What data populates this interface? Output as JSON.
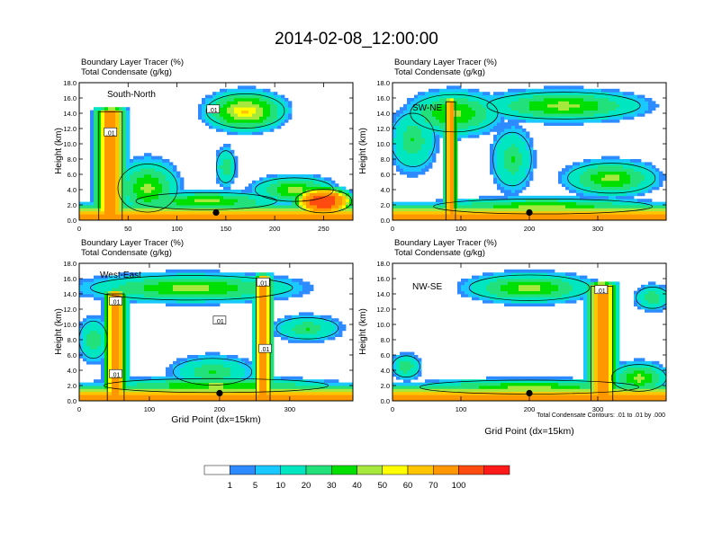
{
  "figure_title": "2014-02-08_12:00:00",
  "footnote": "Total Condensate Contours: .01 to .01 by .000",
  "colors": {
    "levels": [
      "#ffffff",
      "#2e8bff",
      "#18c8ff",
      "#00e6c0",
      "#22e07a",
      "#00e000",
      "#a6e83c",
      "#ffff00",
      "#ffc600",
      "#ff9800",
      "#ff4a10",
      "#ff1a1a"
    ],
    "contour": "#000000",
    "marker": "#000000"
  },
  "colorbar": {
    "labels": [
      "1",
      "5",
      "10",
      "20",
      "30",
      "40",
      "50",
      "60",
      "70",
      "100"
    ]
  },
  "chart_data": [
    {
      "type": "heatmap",
      "title": "Boundary Layer Tracer   (%)",
      "subtitle": "Total Condensate   (g/kg)",
      "panel_label": "South-North",
      "ylabel": "Height (km)",
      "xlabel": "",
      "xlim": [
        0,
        280
      ],
      "ylim": [
        0,
        18
      ],
      "xticks": [
        "0",
        "50",
        "100",
        "150",
        "200",
        "250"
      ],
      "xtick_values": [
        0,
        50,
        100,
        150,
        200,
        250
      ],
      "yticks": [
        "0.0",
        "2.0",
        "4.0",
        "6.0",
        "8.0",
        "10.0",
        "12.0",
        "14.0",
        "16.0",
        "18.0"
      ],
      "surface_band_top_km": 1.0,
      "marker": {
        "x": 140,
        "y": 1.0
      },
      "contour_labels": [
        {
          "x": 32,
          "y": 11.5,
          "text": ".01"
        },
        {
          "x": 137,
          "y": 14.5,
          "text": ".01"
        }
      ],
      "features": [
        {
          "kind": "column",
          "x0": 20,
          "x1": 44,
          "top": 14.2,
          "peak": 100
        },
        {
          "kind": "blob",
          "cx": 70,
          "cy": 4.2,
          "rx": 38,
          "ry": 4.5,
          "peak": 30
        },
        {
          "kind": "blob",
          "cx": 170,
          "cy": 14.3,
          "rx": 50,
          "ry": 3.2,
          "peak": 40
        },
        {
          "kind": "blob",
          "cx": 150,
          "cy": 7.0,
          "rx": 12,
          "ry": 3.0,
          "peak": 20
        },
        {
          "kind": "blob",
          "cx": 250,
          "cy": 2.5,
          "rx": 36,
          "ry": 2.2,
          "peak": 100
        },
        {
          "kind": "blob",
          "cx": 130,
          "cy": 2.5,
          "rx": 90,
          "ry": 1.6,
          "peak": 30
        },
        {
          "kind": "blob",
          "cx": 220,
          "cy": 4.0,
          "rx": 50,
          "ry": 2.2,
          "peak": 30
        }
      ]
    },
    {
      "type": "heatmap",
      "title": "Boundary Layer Tracer   (%)",
      "subtitle": "Total Condensate   (g/kg)",
      "panel_label": "SW-NE",
      "ylabel": "Height (km)",
      "xlabel": "",
      "xlim": [
        0,
        400
      ],
      "ylim": [
        0,
        18
      ],
      "xticks": [
        "0",
        "100",
        "200",
        "300"
      ],
      "xtick_values": [
        0,
        100,
        200,
        300
      ],
      "yticks": [
        "0.0",
        "2.0",
        "4.0",
        "6.0",
        "8.0",
        "10.0",
        "12.0",
        "14.0",
        "16.0",
        "18.0"
      ],
      "surface_band_top_km": 1.0,
      "marker": {
        "x": 200,
        "y": 1.0
      },
      "contour_labels": [],
      "features": [
        {
          "kind": "column",
          "x0": 78,
          "x1": 92,
          "top": 15.5,
          "peak": 100
        },
        {
          "kind": "blob",
          "cx": 90,
          "cy": 14.0,
          "rx": 80,
          "ry": 3.5,
          "peak": 30
        },
        {
          "kind": "blob",
          "cx": 30,
          "cy": 10.5,
          "rx": 40,
          "ry": 5.0,
          "peak": 20
        },
        {
          "kind": "blob",
          "cx": 250,
          "cy": 15.0,
          "rx": 140,
          "ry": 2.5,
          "peak": 30
        },
        {
          "kind": "blob",
          "cx": 175,
          "cy": 8.0,
          "rx": 35,
          "ry": 5.0,
          "peak": 20
        },
        {
          "kind": "blob",
          "cx": 320,
          "cy": 5.5,
          "rx": 80,
          "ry": 2.8,
          "peak": 30
        },
        {
          "kind": "blob",
          "cx": 220,
          "cy": 1.8,
          "rx": 200,
          "ry": 1.4,
          "peak": 30
        }
      ]
    },
    {
      "type": "heatmap",
      "title": "Boundary Layer Tracer   (%)",
      "subtitle": "Total Condensate   (g/kg)",
      "panel_label": "West-East",
      "ylabel": "Height (km)",
      "xlabel": "Grid Point (dx=15km)",
      "xlim": [
        0,
        390
      ],
      "ylim": [
        0,
        18
      ],
      "xticks": [
        "0",
        "100",
        "200",
        "300"
      ],
      "xtick_values": [
        0,
        100,
        200,
        300
      ],
      "yticks": [
        "0.0",
        "2.0",
        "4.0",
        "6.0",
        "8.0",
        "10.0",
        "12.0",
        "14.0",
        "16.0",
        "18.0"
      ],
      "surface_band_top_km": 1.0,
      "marker": {
        "x": 200,
        "y": 1.0
      },
      "contour_labels": [
        {
          "x": 52,
          "y": 13.0,
          "text": ".01"
        },
        {
          "x": 52,
          "y": 3.5,
          "text": ".01"
        },
        {
          "x": 200,
          "y": 10.5,
          "text": ".01"
        },
        {
          "x": 262,
          "y": 15.5,
          "text": ".01"
        },
        {
          "x": 265,
          "y": 6.8,
          "text": ".01"
        }
      ],
      "features": [
        {
          "kind": "column",
          "x0": 40,
          "x1": 64,
          "top": 14.0,
          "peak": 100
        },
        {
          "kind": "column",
          "x0": 252,
          "x1": 272,
          "top": 16.0,
          "peak": 100
        },
        {
          "kind": "blob",
          "cx": 160,
          "cy": 14.8,
          "rx": 180,
          "ry": 2.3,
          "peak": 30
        },
        {
          "kind": "blob",
          "cx": 20,
          "cy": 8.0,
          "rx": 25,
          "ry": 3.5,
          "peak": 20
        },
        {
          "kind": "blob",
          "cx": 190,
          "cy": 3.8,
          "rx": 70,
          "ry": 2.5,
          "peak": 20
        },
        {
          "kind": "blob",
          "cx": 325,
          "cy": 9.5,
          "rx": 55,
          "ry": 2.0,
          "peak": 20
        },
        {
          "kind": "blob",
          "cx": 195,
          "cy": 2.0,
          "rx": 200,
          "ry": 1.3,
          "peak": 30
        }
      ]
    },
    {
      "type": "heatmap",
      "title": "Boundary Layer Tracer   (%)",
      "subtitle": "Total Condensate   (g/kg)",
      "panel_label": "NW-SE",
      "ylabel": "Height (km)",
      "xlabel": "Grid Point (dx=15km)",
      "xlim": [
        0,
        400
      ],
      "ylim": [
        0,
        18
      ],
      "xticks": [
        "0",
        "100",
        "200",
        "300"
      ],
      "xtick_values": [
        0,
        100,
        200,
        300
      ],
      "yticks": [
        "0.0",
        "2.0",
        "4.0",
        "6.0",
        "8.0",
        "10.0",
        "12.0",
        "14.0",
        "16.0",
        "18.0"
      ],
      "surface_band_top_km": 1.0,
      "marker": {
        "x": 200,
        "y": 1.0
      },
      "contour_labels": [
        {
          "x": 305,
          "y": 14.5,
          "text": ".01"
        }
      ],
      "features": [
        {
          "kind": "column",
          "x0": 290,
          "x1": 322,
          "top": 15.0,
          "peak": 100
        },
        {
          "kind": "blob",
          "cx": 200,
          "cy": 14.8,
          "rx": 110,
          "ry": 2.4,
          "peak": 30
        },
        {
          "kind": "blob",
          "cx": 380,
          "cy": 13.5,
          "rx": 30,
          "ry": 2.0,
          "peak": 20
        },
        {
          "kind": "blob",
          "cx": 360,
          "cy": 3.0,
          "rx": 50,
          "ry": 2.5,
          "peak": 30
        },
        {
          "kind": "blob",
          "cx": 20,
          "cy": 4.5,
          "rx": 25,
          "ry": 2.0,
          "peak": 20
        },
        {
          "kind": "blob",
          "cx": 200,
          "cy": 1.8,
          "rx": 200,
          "ry": 1.3,
          "peak": 30
        }
      ]
    }
  ]
}
